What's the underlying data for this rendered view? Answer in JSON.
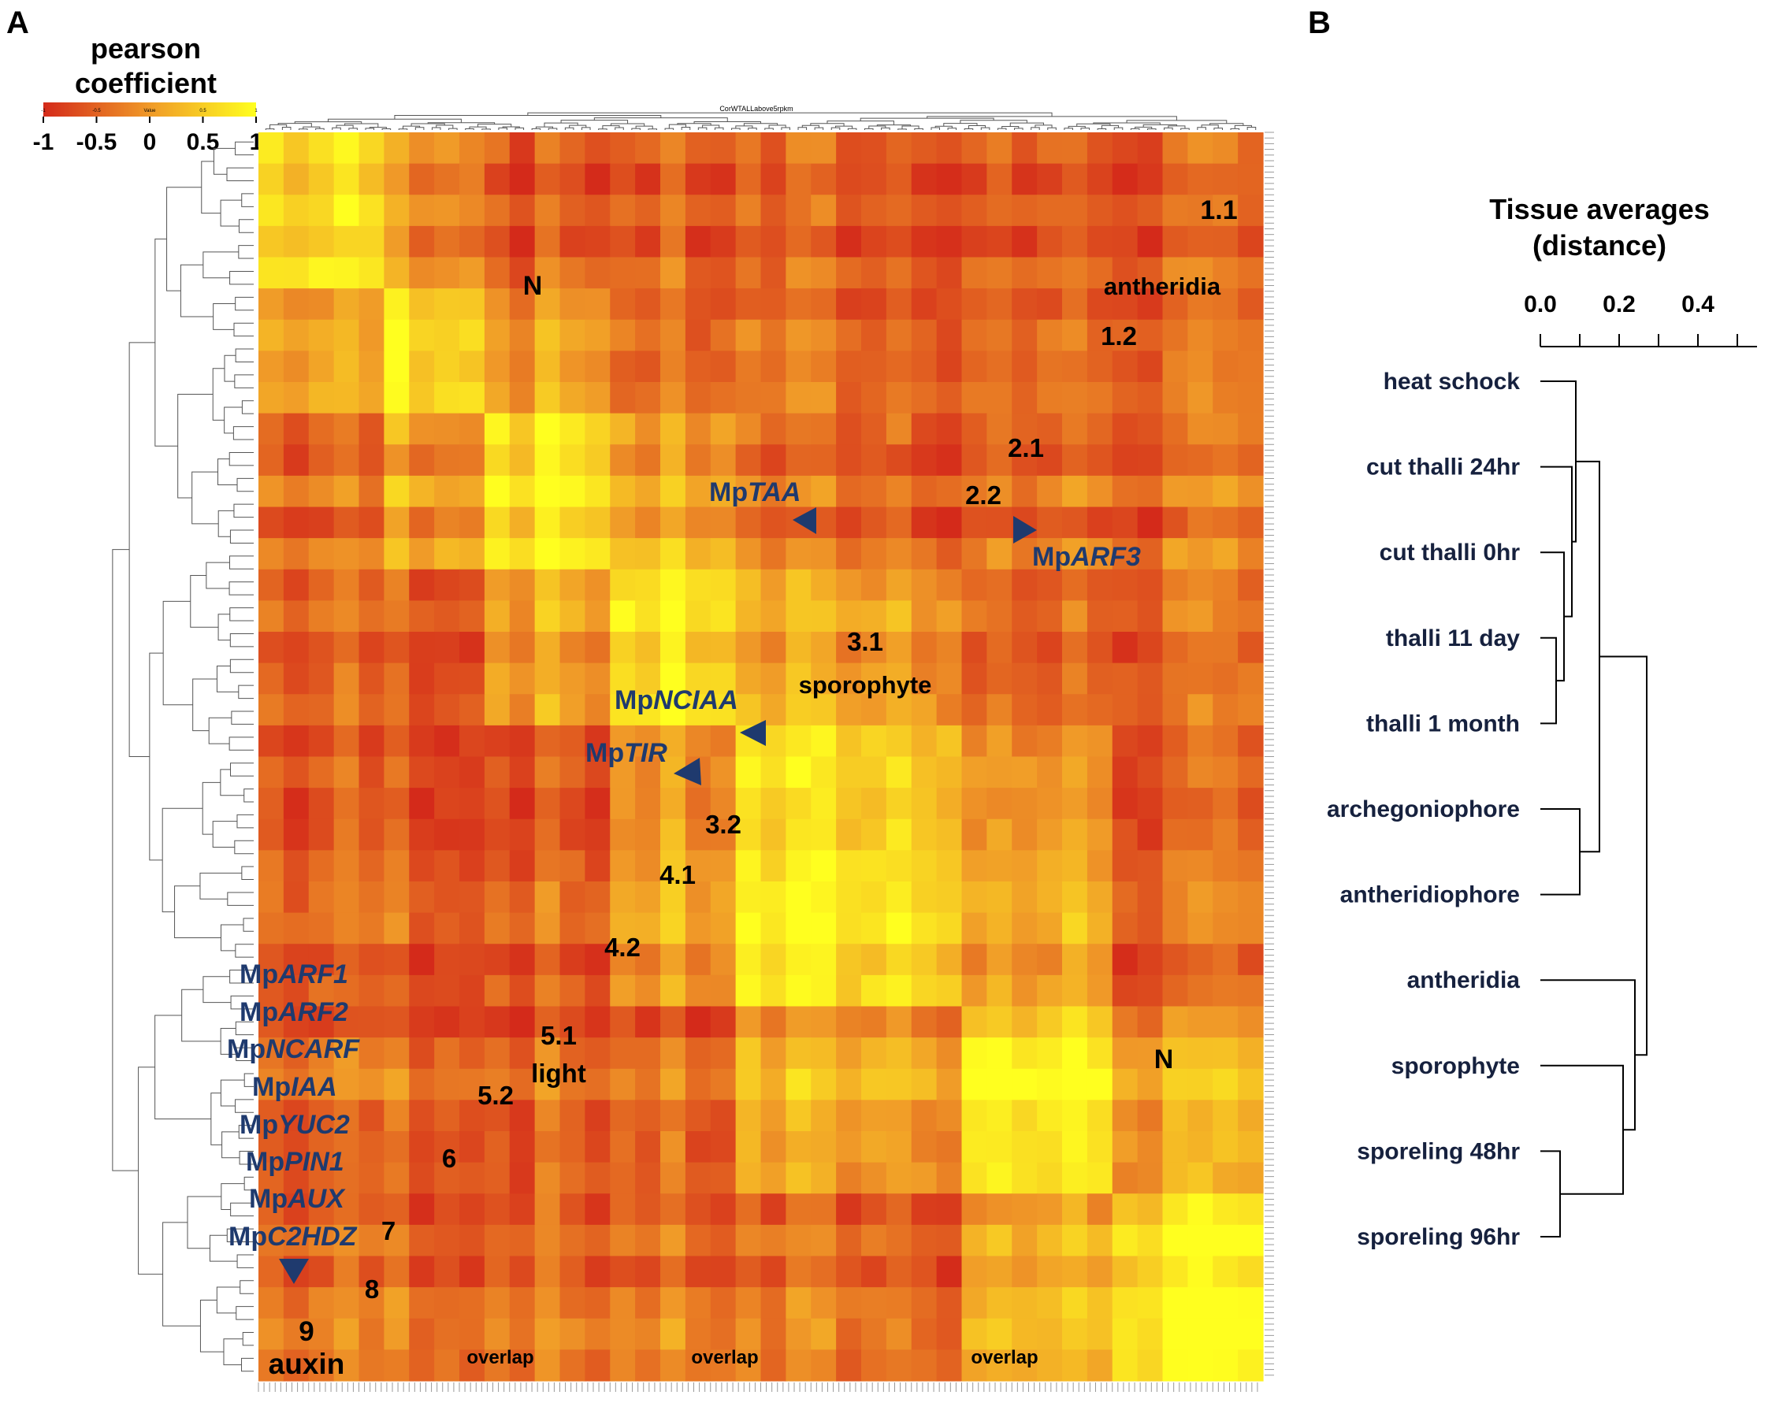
{
  "panels": {
    "a": "A",
    "b": "B"
  },
  "colors": {
    "low": "#d42a1a",
    "mid": "#f09a28",
    "high": "#ffff1f",
    "gene_label": "#1f3a6e",
    "tissue_label": "#16213e"
  },
  "chart_data": [
    {
      "type": "heatmap",
      "title": "CorWTALLabove5rpkm",
      "colorbar": {
        "title_line1": "pearson",
        "title_line2": "coefficient",
        "ticks": [
          "-1",
          "-0.5",
          "0",
          "0.5",
          "1"
        ],
        "mini_ticks": [
          "-1",
          "-0.5",
          "Value",
          "0.5",
          "1"
        ],
        "range": [
          -1,
          1
        ]
      },
      "metric": "pearson coefficient",
      "clusters": [
        {
          "id": "1.1",
          "note": ""
        },
        {
          "id": "1.2",
          "note": "antheridia"
        },
        {
          "id": "2.1",
          "note": ""
        },
        {
          "id": "2.2",
          "note": ""
        },
        {
          "id": "3.1",
          "note": "sporophyte"
        },
        {
          "id": "3.2",
          "note": ""
        },
        {
          "id": "4.1",
          "note": ""
        },
        {
          "id": "4.2",
          "note": ""
        },
        {
          "id": "5.1",
          "note": "light"
        },
        {
          "id": "5.2",
          "note": ""
        },
        {
          "id": "6",
          "note": ""
        },
        {
          "id": "7",
          "note": ""
        },
        {
          "id": "8",
          "note": ""
        },
        {
          "id": "9",
          "note": "auxin"
        }
      ],
      "annotations": {
        "n_upper": "N",
        "n_lower": "N",
        "overlap": [
          "overlap",
          "overlap",
          "overlap"
        ]
      },
      "genes_arrowed": [
        {
          "prefix": "Mp",
          "name": "TAA"
        },
        {
          "prefix": "Mp",
          "name": "ARF3"
        },
        {
          "prefix": "Mp",
          "name": "NCIAA"
        },
        {
          "prefix": "Mp",
          "name": "TIR"
        }
      ],
      "genes_auxin_cluster": [
        {
          "prefix": "Mp",
          "name": "ARF1"
        },
        {
          "prefix": "Mp",
          "name": "ARF2"
        },
        {
          "prefix": "Mp",
          "name": "NCARF"
        },
        {
          "prefix": "Mp",
          "name": "IAA"
        },
        {
          "prefix": "Mp",
          "name": "YUC2"
        },
        {
          "prefix": "Mp",
          "name": "PIN1"
        },
        {
          "prefix": "Mp",
          "name": "AUX"
        },
        {
          "prefix": "Mp",
          "name": "C2HDZ"
        }
      ]
    },
    {
      "type": "dendrogram",
      "title_line1": "Tissue averages",
      "title_line2": "(distance)",
      "axis_ticks": [
        "0.0",
        "0.2",
        "0.4"
      ],
      "xlim": [
        0.0,
        0.56
      ],
      "leaves": [
        "heat schock",
        "cut thalli 24hr",
        "cut thalli 0hr",
        "thalli 11 day",
        "thalli 1 month",
        "archegoniophore",
        "antheridiophore",
        "antheridia",
        "sporophyte",
        "sporeling 48hr",
        "sporeling 96hr"
      ],
      "merges": [
        {
          "a": 3,
          "b": 4,
          "height": 0.04
        },
        {
          "a": 2,
          "b": 11,
          "height": 0.06
        },
        {
          "a": 1,
          "b": 12,
          "height": 0.08
        },
        {
          "a": 0,
          "b": 13,
          "height": 0.09
        },
        {
          "a": 5,
          "b": 6,
          "height": 0.1
        },
        {
          "a": 14,
          "b": 15,
          "height": 0.15
        },
        {
          "a": 9,
          "b": 10,
          "height": 0.05
        },
        {
          "a": 8,
          "b": 17,
          "height": 0.21
        },
        {
          "a": 7,
          "b": 18,
          "height": 0.24
        },
        {
          "a": 16,
          "b": 19,
          "height": 0.27
        }
      ]
    }
  ]
}
